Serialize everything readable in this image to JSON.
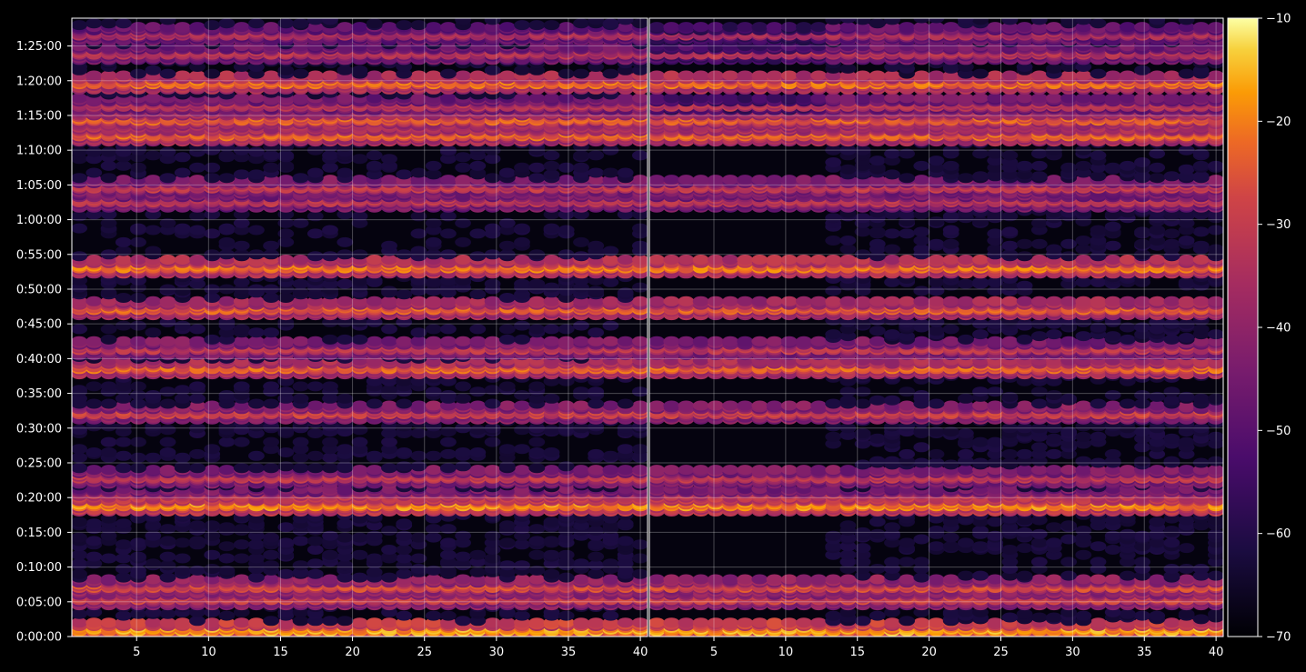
{
  "chart_data": {
    "type": "heatmap",
    "title": "",
    "xlabel": "",
    "ylabel": "",
    "panels": [
      {
        "x_range": [
          1,
          40
        ],
        "x_ticks": [
          "5",
          "10",
          "15",
          "20",
          "25",
          "30",
          "35",
          "40"
        ]
      },
      {
        "x_range": [
          1,
          40
        ],
        "x_ticks": [
          "5",
          "10",
          "15",
          "20",
          "25",
          "30",
          "35",
          "40"
        ]
      }
    ],
    "y_range_seconds": [
      0,
      5340
    ],
    "y_ticks": [
      "0:00:00",
      "0:05:00",
      "0:10:00",
      "0:15:00",
      "0:20:00",
      "0:25:00",
      "0:30:00",
      "0:35:00",
      "0:40:00",
      "0:45:00",
      "0:50:00",
      "0:55:00",
      "1:00:00",
      "1:05:00",
      "1:10:00",
      "1:15:00",
      "1:20:00",
      "1:25:00"
    ],
    "grid": true,
    "colormap": "inferno",
    "colorbar": {
      "range": [
        -70,
        -10
      ],
      "ticks": [
        "−10",
        "−20",
        "−30",
        "−40",
        "−50",
        "−60",
        "−70"
      ],
      "tick_values": [
        -10,
        -20,
        -30,
        -40,
        -50,
        -60,
        -70
      ]
    },
    "row_profile": {
      "note_units": "approximate row intensity in colorbar units (dB) at time offsets in seconds",
      "bright_rows": [
        {
          "t": 60,
          "v": -18
        },
        {
          "t": 330,
          "v": -30
        },
        {
          "t": 440,
          "v": -28
        },
        {
          "t": 1135,
          "v": -20
        },
        {
          "t": 1220,
          "v": -33
        },
        {
          "t": 1385,
          "v": -32
        },
        {
          "t": 1940,
          "v": -30
        },
        {
          "t": 2330,
          "v": -24
        },
        {
          "t": 2490,
          "v": -32
        },
        {
          "t": 2830,
          "v": -25
        },
        {
          "t": 3190,
          "v": -22
        },
        {
          "t": 3760,
          "v": -33
        },
        {
          "t": 3890,
          "v": -32
        },
        {
          "t": 4330,
          "v": -24
        },
        {
          "t": 4475,
          "v": -25
        },
        {
          "t": 4590,
          "v": -34
        },
        {
          "t": 4780,
          "v": -23
        },
        {
          "t": 5040,
          "v": -34
        },
        {
          "t": 5200,
          "v": -36
        }
      ]
    }
  }
}
